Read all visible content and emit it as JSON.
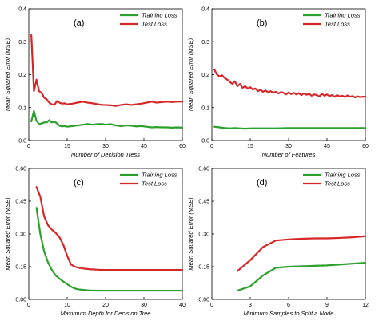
{
  "colors": {
    "train": "#2ca02c",
    "test": "#d62728"
  },
  "chart_data": [
    {
      "type": "line",
      "label": "(a)",
      "xlabel": "Number of Decision Tress",
      "ylabel": "Mean Squared Error (MSE)",
      "xlim": [
        0,
        60
      ],
      "ylim": [
        0,
        0.4
      ],
      "xticks": [
        0,
        15,
        30,
        45,
        60
      ],
      "xtick_labels": [
        "0",
        "15",
        "30",
        "45",
        "60"
      ],
      "yticks": [
        0,
        0.1,
        0.2,
        0.3,
        0.4
      ],
      "ytick_labels": [
        "0.0",
        "0.1",
        "0.2",
        "0.3",
        "0.4"
      ],
      "legend": "top-right",
      "series": [
        {
          "name": "Training Loss",
          "color": "#2ca02c",
          "x": [
            1,
            2,
            3,
            4,
            5,
            6,
            7,
            8,
            9,
            10,
            11,
            12,
            13,
            14,
            15,
            17,
            19,
            21,
            23,
            25,
            27,
            29,
            30,
            32,
            34,
            36,
            38,
            40,
            42,
            44,
            46,
            48,
            50,
            52,
            54,
            56,
            58,
            60
          ],
          "y": [
            0.058,
            0.09,
            0.06,
            0.05,
            0.052,
            0.055,
            0.055,
            0.062,
            0.055,
            0.058,
            0.052,
            0.045,
            0.043,
            0.044,
            0.042,
            0.044,
            0.046,
            0.048,
            0.05,
            0.048,
            0.05,
            0.05,
            0.048,
            0.05,
            0.046,
            0.044,
            0.046,
            0.045,
            0.043,
            0.044,
            0.042,
            0.04,
            0.041,
            0.04,
            0.04,
            0.039,
            0.04,
            0.039
          ]
        },
        {
          "name": "Test Loss",
          "color": "#d62728",
          "x": [
            1,
            2,
            3,
            4,
            5,
            6,
            7,
            8,
            9,
            10,
            11,
            12,
            13,
            14,
            15,
            17,
            19,
            21,
            23,
            25,
            27,
            29,
            30,
            32,
            34,
            36,
            38,
            40,
            42,
            44,
            46,
            48,
            50,
            52,
            54,
            56,
            58,
            60
          ],
          "y": [
            0.32,
            0.15,
            0.185,
            0.15,
            0.145,
            0.13,
            0.125,
            0.115,
            0.11,
            0.108,
            0.12,
            0.115,
            0.112,
            0.113,
            0.11,
            0.112,
            0.115,
            0.118,
            0.115,
            0.113,
            0.11,
            0.108,
            0.108,
            0.107,
            0.105,
            0.108,
            0.11,
            0.108,
            0.11,
            0.112,
            0.115,
            0.118,
            0.115,
            0.117,
            0.118,
            0.117,
            0.118,
            0.118
          ]
        }
      ]
    },
    {
      "type": "line",
      "label": "(b)",
      "xlabel": "Number of Features",
      "ylabel": "Mean Squared Error (MSE)",
      "xlim": [
        0,
        60
      ],
      "ylim": [
        0,
        0.4
      ],
      "xticks": [
        0,
        15,
        30,
        45,
        60
      ],
      "xtick_labels": [
        "0",
        "15",
        "30",
        "45",
        "60"
      ],
      "yticks": [
        0,
        0.1,
        0.2,
        0.3,
        0.4
      ],
      "ytick_labels": [
        "0.0",
        "0.1",
        "0.2",
        "0.3",
        "0.4"
      ],
      "legend": "top-right",
      "series": [
        {
          "name": "Training Loss",
          "color": "#2ca02c",
          "x": [
            1,
            3,
            5,
            7,
            9,
            11,
            13,
            15,
            20,
            25,
            30,
            35,
            40,
            45,
            50,
            55,
            60
          ],
          "y": [
            0.042,
            0.04,
            0.038,
            0.037,
            0.038,
            0.037,
            0.036,
            0.037,
            0.037,
            0.037,
            0.038,
            0.038,
            0.038,
            0.038,
            0.038,
            0.038,
            0.038
          ]
        },
        {
          "name": "Test Loss",
          "color": "#d62728",
          "x": [
            1,
            2,
            3,
            4,
            5,
            6,
            7,
            8,
            9,
            10,
            11,
            12,
            13,
            14,
            15,
            16,
            17,
            18,
            19,
            20,
            21,
            22,
            23,
            24,
            25,
            26,
            27,
            28,
            29,
            30,
            31,
            32,
            33,
            34,
            35,
            36,
            37,
            38,
            39,
            40,
            41,
            42,
            43,
            44,
            45,
            46,
            47,
            48,
            49,
            50,
            51,
            52,
            53,
            54,
            55,
            56,
            57,
            58,
            59,
            60
          ],
          "y": [
            0.215,
            0.2,
            0.195,
            0.198,
            0.19,
            0.185,
            0.178,
            0.172,
            0.18,
            0.165,
            0.172,
            0.16,
            0.165,
            0.158,
            0.162,
            0.155,
            0.158,
            0.15,
            0.154,
            0.148,
            0.152,
            0.146,
            0.15,
            0.145,
            0.148,
            0.143,
            0.147,
            0.145,
            0.14,
            0.146,
            0.141,
            0.145,
            0.14,
            0.144,
            0.138,
            0.143,
            0.139,
            0.142,
            0.136,
            0.14,
            0.138,
            0.134,
            0.142,
            0.136,
            0.14,
            0.135,
            0.138,
            0.133,
            0.138,
            0.134,
            0.136,
            0.132,
            0.137,
            0.133,
            0.135,
            0.131,
            0.134,
            0.132,
            0.133,
            0.133
          ]
        }
      ]
    },
    {
      "type": "line",
      "label": "(c)",
      "xlabel": "Maximum Depth for Decision Tree",
      "ylabel": "Mean Squared Error (MSE)",
      "xlim": [
        0,
        40
      ],
      "ylim": [
        0,
        0.6
      ],
      "xticks": [
        0,
        10,
        20,
        30,
        40
      ],
      "xtick_labels": [
        "0",
        "10",
        "20",
        "30",
        "40"
      ],
      "yticks": [
        0,
        0.15,
        0.3,
        0.45,
        0.6
      ],
      "ytick_labels": [
        "0.00",
        "0.15",
        "0.30",
        "0.45",
        "0.60"
      ],
      "legend": "top-right",
      "series": [
        {
          "name": "Training Loss",
          "color": "#2ca02c",
          "x": [
            2,
            3,
            4,
            5,
            6,
            7,
            8,
            9,
            10,
            11,
            12,
            13,
            14,
            15,
            16,
            18,
            20,
            25,
            30,
            35,
            40
          ],
          "y": [
            0.42,
            0.3,
            0.22,
            0.17,
            0.135,
            0.11,
            0.095,
            0.082,
            0.07,
            0.058,
            0.05,
            0.046,
            0.044,
            0.042,
            0.041,
            0.04,
            0.04,
            0.04,
            0.04,
            0.04,
            0.04
          ]
        },
        {
          "name": "Test Loss",
          "color": "#d62728",
          "x": [
            2,
            3,
            4,
            5,
            6,
            7,
            8,
            9,
            10,
            11,
            12,
            13,
            14,
            15,
            16,
            18,
            20,
            25,
            30,
            35,
            40
          ],
          "y": [
            0.515,
            0.47,
            0.38,
            0.34,
            0.32,
            0.305,
            0.285,
            0.25,
            0.2,
            0.16,
            0.15,
            0.145,
            0.142,
            0.14,
            0.138,
            0.136,
            0.135,
            0.135,
            0.135,
            0.135,
            0.135
          ]
        }
      ]
    },
    {
      "type": "line",
      "label": "(d)",
      "xlabel": "Minimum Samples to Split a Node",
      "ylabel": "Mean Squared Error (MSE)",
      "xlim": [
        0,
        12
      ],
      "ylim": [
        0,
        0.6
      ],
      "xticks": [
        0,
        3,
        6,
        9,
        12
      ],
      "xtick_labels": [
        "0",
        "3",
        "6",
        "9",
        "12"
      ],
      "yticks": [
        0,
        0.15,
        0.3,
        0.45,
        0.6
      ],
      "ytick_labels": [
        "0.00",
        "0.15",
        "0.30",
        "0.45",
        "0.60"
      ],
      "legend": "top-right",
      "series": [
        {
          "name": "Training Loss",
          "color": "#2ca02c",
          "x": [
            2,
            3,
            4,
            5,
            6,
            7,
            8,
            9,
            10,
            11,
            12
          ],
          "y": [
            0.04,
            0.06,
            0.11,
            0.145,
            0.15,
            0.152,
            0.154,
            0.156,
            0.16,
            0.164,
            0.168
          ]
        },
        {
          "name": "Test Loss",
          "color": "#d62728",
          "x": [
            2,
            3,
            4,
            5,
            6,
            7,
            8,
            9,
            10,
            11,
            12
          ],
          "y": [
            0.13,
            0.18,
            0.24,
            0.27,
            0.275,
            0.278,
            0.28,
            0.28,
            0.282,
            0.285,
            0.29
          ]
        }
      ]
    }
  ]
}
